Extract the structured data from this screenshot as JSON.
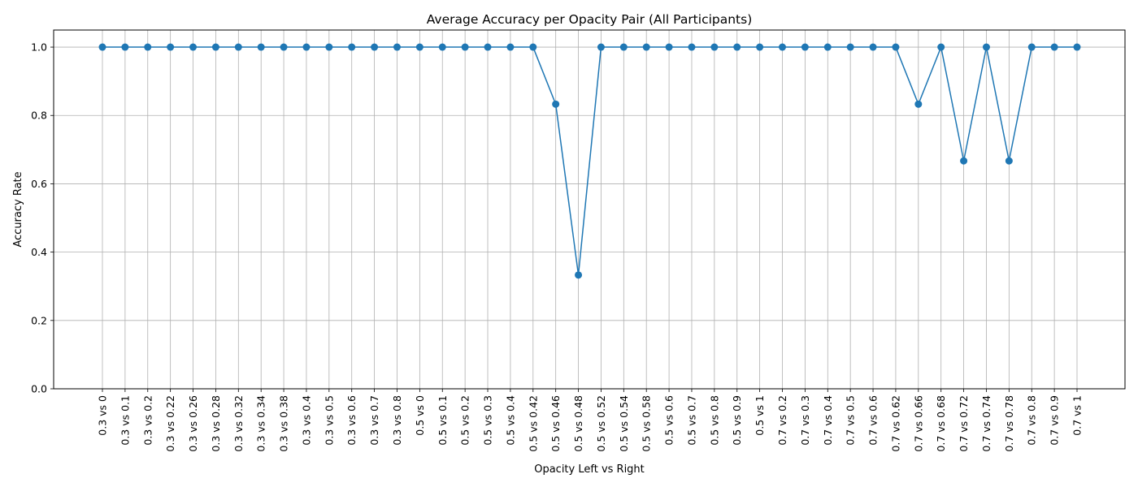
{
  "chart_data": {
    "type": "line",
    "title": "Average Accuracy per Opacity Pair (All Participants)",
    "xlabel": "Opacity Left vs Right",
    "ylabel": "Accuracy Rate",
    "ylim": [
      0,
      1.05
    ],
    "yticks": [
      0.0,
      0.2,
      0.4,
      0.6,
      0.8,
      1.0
    ],
    "ytick_labels": [
      "0.0",
      "0.2",
      "0.4",
      "0.6",
      "0.8",
      "1.0"
    ],
    "grid": true,
    "marker": "circle",
    "color": "#1f77b4",
    "categories": [
      "0.3 vs 0",
      "0.3 vs 0.1",
      "0.3 vs 0.2",
      "0.3 vs 0.22",
      "0.3 vs 0.26",
      "0.3 vs 0.28",
      "0.3 vs 0.32",
      "0.3 vs 0.34",
      "0.3 vs 0.38",
      "0.3 vs 0.4",
      "0.3 vs 0.5",
      "0.3 vs 0.6",
      "0.3 vs 0.7",
      "0.3 vs 0.8",
      "0.5 vs 0",
      "0.5 vs 0.1",
      "0.5 vs 0.2",
      "0.5 vs 0.3",
      "0.5 vs 0.4",
      "0.5 vs 0.42",
      "0.5 vs 0.46",
      "0.5 vs 0.48",
      "0.5 vs 0.52",
      "0.5 vs 0.54",
      "0.5 vs 0.58",
      "0.5 vs 0.6",
      "0.5 vs 0.7",
      "0.5 vs 0.8",
      "0.5 vs 0.9",
      "0.5 vs 1",
      "0.7 vs 0.2",
      "0.7 vs 0.3",
      "0.7 vs 0.4",
      "0.7 vs 0.5",
      "0.7 vs 0.6",
      "0.7 vs 0.62",
      "0.7 vs 0.66",
      "0.7 vs 0.68",
      "0.7 vs 0.72",
      "0.7 vs 0.74",
      "0.7 vs 0.78",
      "0.7 vs 0.8",
      "0.7 vs 0.9",
      "0.7 vs 1"
    ],
    "values": [
      1.0,
      1.0,
      1.0,
      1.0,
      1.0,
      1.0,
      1.0,
      1.0,
      1.0,
      1.0,
      1.0,
      1.0,
      1.0,
      1.0,
      1.0,
      1.0,
      1.0,
      1.0,
      1.0,
      1.0,
      0.833,
      0.333,
      1.0,
      1.0,
      1.0,
      1.0,
      1.0,
      1.0,
      1.0,
      1.0,
      1.0,
      1.0,
      1.0,
      1.0,
      1.0,
      1.0,
      0.833,
      1.0,
      0.667,
      1.0,
      0.667,
      1.0,
      1.0,
      1.0
    ]
  }
}
